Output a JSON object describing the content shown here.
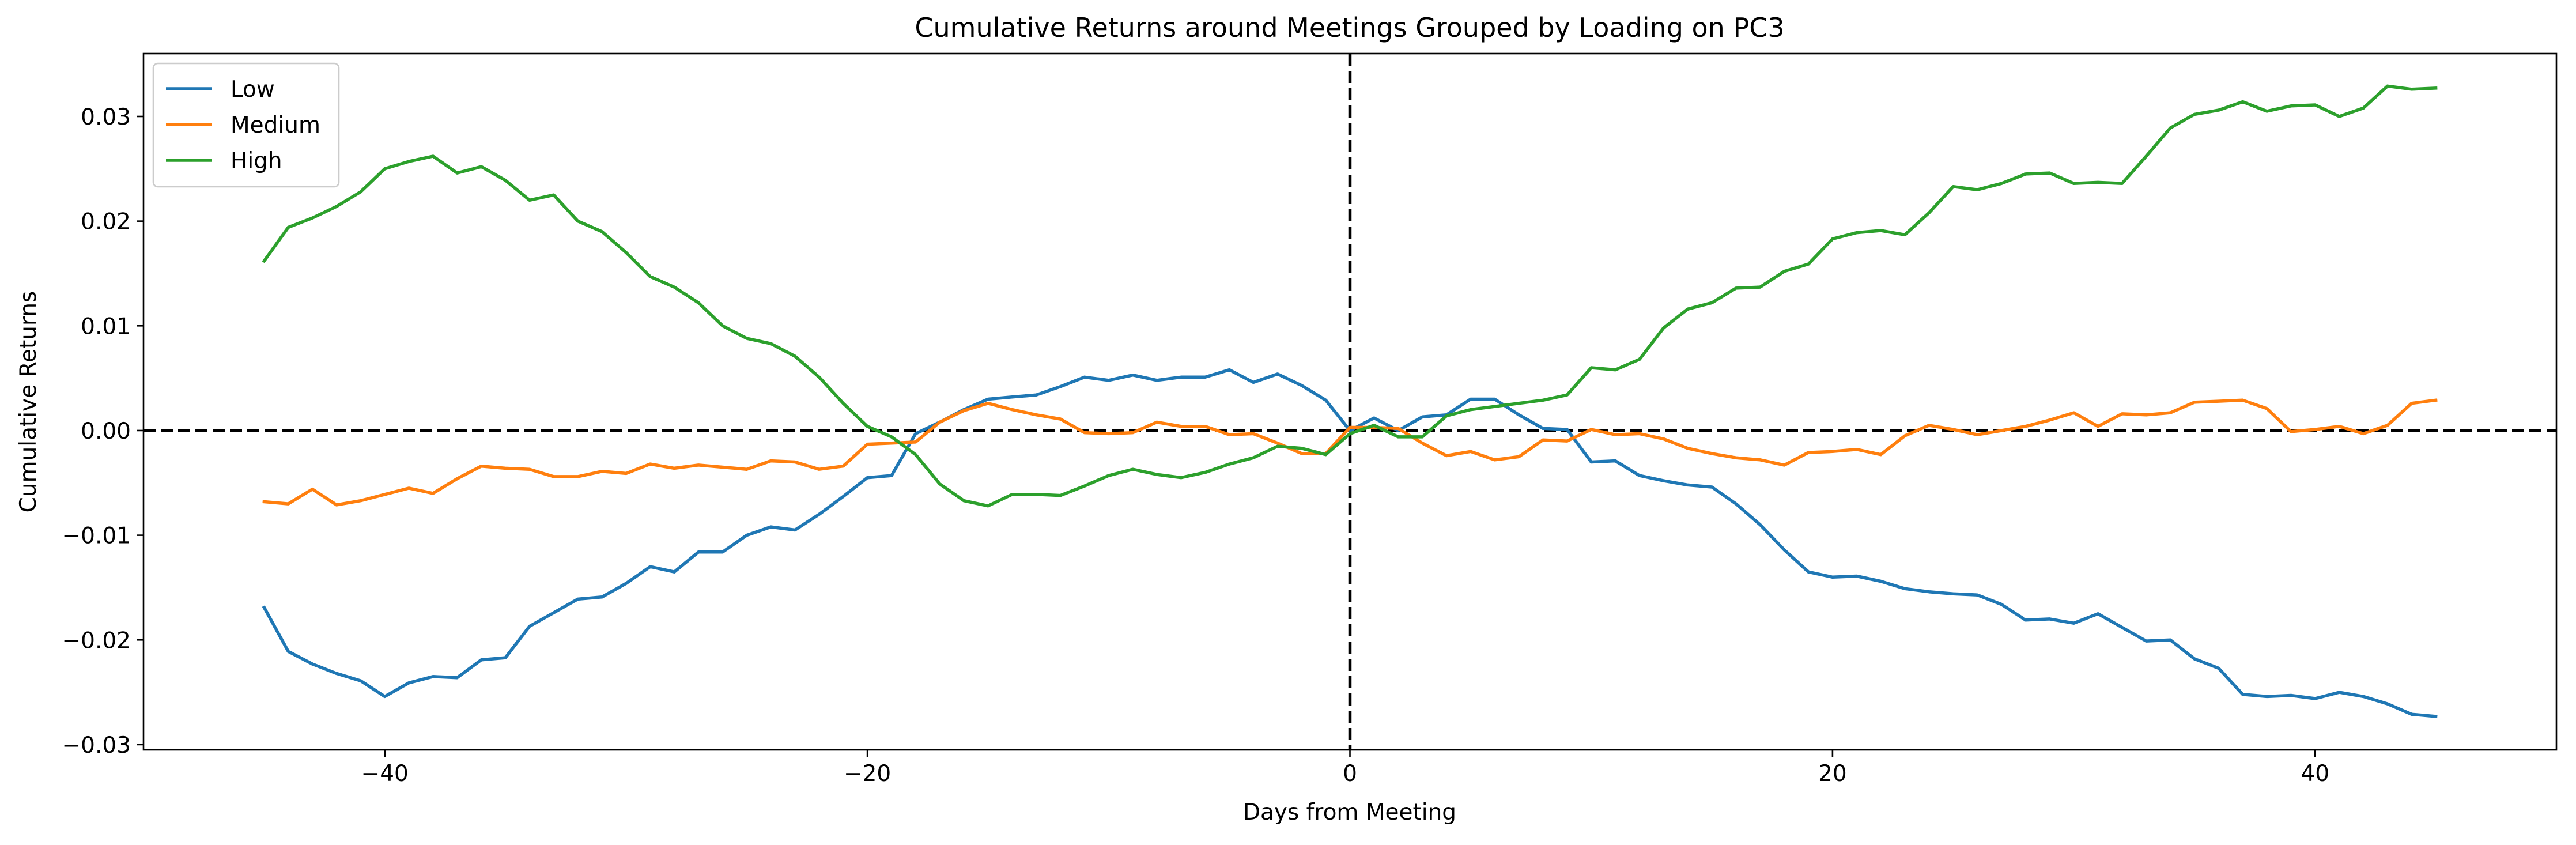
{
  "chart_data": {
    "type": "line",
    "title": "Cumulative Returns around Meetings Grouped by Loading on PC3",
    "xlabel": "Days from Meeting",
    "ylabel": "Cumulative Returns",
    "xlim": [
      -50,
      50
    ],
    "ylim": [
      -0.0305,
      0.036
    ],
    "xticks": [
      -40,
      -20,
      0,
      20,
      40
    ],
    "xtick_labels": [
      "−40",
      "−20",
      "0",
      "20",
      "40"
    ],
    "yticks": [
      -0.03,
      -0.02,
      -0.01,
      0.0,
      0.01,
      0.02,
      0.03
    ],
    "ytick_labels": [
      "−0.03",
      "−0.02",
      "−0.01",
      "0.00",
      "0.01",
      "0.02",
      "0.03"
    ],
    "grid": false,
    "legend_position": "top-left",
    "reference_lines": {
      "vertical_x": 0,
      "horizontal_y": 0,
      "style": "dashed",
      "color": "#000000"
    },
    "x": [
      -45,
      -44,
      -43,
      -42,
      -41,
      -40,
      -39,
      -38,
      -37,
      -36,
      -35,
      -34,
      -33,
      -32,
      -31,
      -30,
      -29,
      -28,
      -27,
      -26,
      -25,
      -24,
      -23,
      -22,
      -21,
      -20,
      -19,
      -18,
      -17,
      -16,
      -15,
      -14,
      -13,
      -12,
      -11,
      -10,
      -9,
      -8,
      -7,
      -6,
      -5,
      -4,
      -3,
      -2,
      -1,
      0,
      1,
      2,
      3,
      4,
      5,
      6,
      7,
      8,
      9,
      10,
      11,
      12,
      13,
      14,
      15,
      16,
      17,
      18,
      19,
      20,
      21,
      22,
      23,
      24,
      25,
      26,
      27,
      28,
      29,
      30,
      31,
      32,
      33,
      34,
      35,
      36,
      37,
      38,
      39,
      40,
      41,
      42,
      43,
      44,
      45
    ],
    "series": [
      {
        "name": "Low",
        "color": "#1f77b4",
        "values": [
          -0.0169,
          -0.0211,
          -0.0223,
          -0.0232,
          -0.0239,
          -0.0254,
          -0.0241,
          -0.0235,
          -0.0236,
          -0.0219,
          -0.0217,
          -0.0187,
          -0.0174,
          -0.0161,
          -0.0159,
          -0.0146,
          -0.013,
          -0.0135,
          -0.0116,
          -0.0116,
          -0.01,
          -0.0092,
          -0.0095,
          -0.008,
          -0.0063,
          -0.0045,
          -0.0043,
          -0.0003,
          0.0008,
          0.002,
          0.003,
          0.0032,
          0.0034,
          0.0042,
          0.0051,
          0.0048,
          0.0053,
          0.0048,
          0.0051,
          0.0051,
          0.0058,
          0.0046,
          0.0054,
          0.0043,
          0.0029,
          0.0,
          0.0012,
          0.0,
          0.0013,
          0.0015,
          0.003,
          0.003,
          0.0015,
          0.0002,
          0.0001,
          -0.003,
          -0.0029,
          -0.0043,
          -0.0048,
          -0.0052,
          -0.0054,
          -0.007,
          -0.009,
          -0.0114,
          -0.0135,
          -0.014,
          -0.0139,
          -0.0144,
          -0.0151,
          -0.0154,
          -0.0156,
          -0.0157,
          -0.0166,
          -0.0181,
          -0.018,
          -0.0184,
          -0.0175,
          -0.0188,
          -0.0201,
          -0.02,
          -0.0218,
          -0.0227,
          -0.0252,
          -0.0254,
          -0.0253,
          -0.0256,
          -0.025,
          -0.0254,
          -0.0261,
          -0.0271,
          -0.0273
        ]
      },
      {
        "name": "Medium",
        "color": "#ff7f0e",
        "values": [
          -0.0068,
          -0.007,
          -0.0056,
          -0.0071,
          -0.0067,
          -0.0061,
          -0.0055,
          -0.006,
          -0.0046,
          -0.0034,
          -0.0036,
          -0.0037,
          -0.0044,
          -0.0044,
          -0.0039,
          -0.0041,
          -0.0032,
          -0.0036,
          -0.0033,
          -0.0035,
          -0.0037,
          -0.0029,
          -0.003,
          -0.0037,
          -0.0034,
          -0.0013,
          -0.0012,
          -0.0011,
          0.0008,
          0.0019,
          0.0026,
          0.002,
          0.0015,
          0.0011,
          -0.0002,
          -0.0003,
          -0.0002,
          0.0008,
          0.0004,
          0.0004,
          -0.0004,
          -0.0003,
          -0.0012,
          -0.0022,
          -0.0022,
          0.0003,
          0.0003,
          0.0002,
          -0.0012,
          -0.0024,
          -0.002,
          -0.0028,
          -0.0025,
          -0.0009,
          -0.001,
          0.0001,
          -0.0004,
          -0.0003,
          -0.0008,
          -0.0017,
          -0.0022,
          -0.0026,
          -0.0028,
          -0.0033,
          -0.0021,
          -0.002,
          -0.0018,
          -0.0023,
          -0.0005,
          0.0005,
          0.0001,
          -0.0004,
          0.0,
          0.0004,
          0.001,
          0.0017,
          0.0004,
          0.0016,
          0.0015,
          0.0017,
          0.0027,
          0.0028,
          0.0029,
          0.0021,
          -0.0001,
          0.0001,
          0.0004,
          -0.0003,
          0.0005,
          0.0026,
          0.0029
        ]
      },
      {
        "name": "High",
        "color": "#2ca02c",
        "values": [
          0.0162,
          0.0194,
          0.0203,
          0.0214,
          0.0228,
          0.025,
          0.0257,
          0.0262,
          0.0246,
          0.0252,
          0.0239,
          0.022,
          0.0225,
          0.02,
          0.019,
          0.017,
          0.0147,
          0.0137,
          0.0122,
          0.01,
          0.0088,
          0.0083,
          0.0071,
          0.0051,
          0.0026,
          0.0004,
          -0.0006,
          -0.0023,
          -0.0051,
          -0.0067,
          -0.0072,
          -0.0061,
          -0.0061,
          -0.0062,
          -0.0053,
          -0.0043,
          -0.0037,
          -0.0042,
          -0.0045,
          -0.004,
          -0.0032,
          -0.0026,
          -0.0015,
          -0.0017,
          -0.0023,
          -0.0003,
          0.0005,
          -0.0006,
          -0.0006,
          0.0014,
          0.002,
          0.0023,
          0.0026,
          0.0029,
          0.0034,
          0.006,
          0.0058,
          0.0068,
          0.0098,
          0.0116,
          0.0122,
          0.0136,
          0.0137,
          0.0152,
          0.0159,
          0.0183,
          0.0189,
          0.0191,
          0.0187,
          0.0208,
          0.0233,
          0.023,
          0.0236,
          0.0245,
          0.0246,
          0.0236,
          0.0237,
          0.0236,
          0.0262,
          0.0289,
          0.0302,
          0.0306,
          0.0314,
          0.0305,
          0.031,
          0.0311,
          0.03,
          0.0308,
          0.0329,
          0.0326,
          0.0327
        ]
      }
    ]
  }
}
